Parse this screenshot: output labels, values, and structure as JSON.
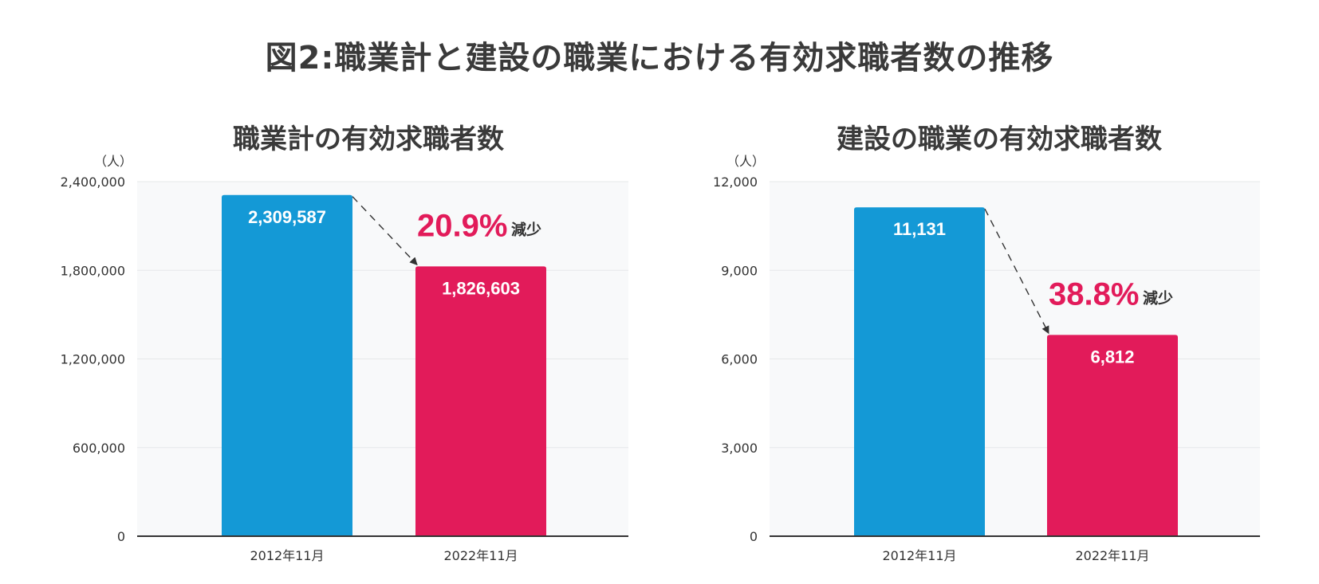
{
  "title": "図2:職業計と建設の職業における有効求職者数の推移",
  "colors": {
    "bar_2012": "#1499d6",
    "bar_2022": "#e21b5a",
    "highlight": "#e21b5a",
    "plot_bg": "#f8f9fa",
    "grid": "#e6e8ea",
    "axis": "#333333"
  },
  "chart_data": [
    {
      "type": "bar",
      "title": "職業計の有効求職者数",
      "unit_label": "（人）",
      "categories": [
        "2012年11月",
        "2022年11月"
      ],
      "values": [
        2309587,
        1826603
      ],
      "value_labels": [
        "2,309,587",
        "1,826,603"
      ],
      "ylim": [
        0,
        2400000
      ],
      "yticks": [
        0,
        600000,
        1200000,
        1800000,
        2400000
      ],
      "ytick_labels": [
        "0",
        "600,000",
        "1,200,000",
        "1,800,000",
        "2,400,000"
      ],
      "change": {
        "percent": "20.9%",
        "text": "減少"
      },
      "grid": true
    },
    {
      "type": "bar",
      "title": "建設の職業の有効求職者数",
      "unit_label": "（人）",
      "categories": [
        "2012年11月",
        "2022年11月"
      ],
      "values": [
        11131,
        6812
      ],
      "value_labels": [
        "11,131",
        "6,812"
      ],
      "ylim": [
        0,
        12000
      ],
      "yticks": [
        0,
        3000,
        6000,
        9000,
        12000
      ],
      "ytick_labels": [
        "0",
        "3,000",
        "6,000",
        "9,000",
        "12,000"
      ],
      "change": {
        "percent": "38.8%",
        "text": "減少"
      },
      "grid": true
    }
  ]
}
